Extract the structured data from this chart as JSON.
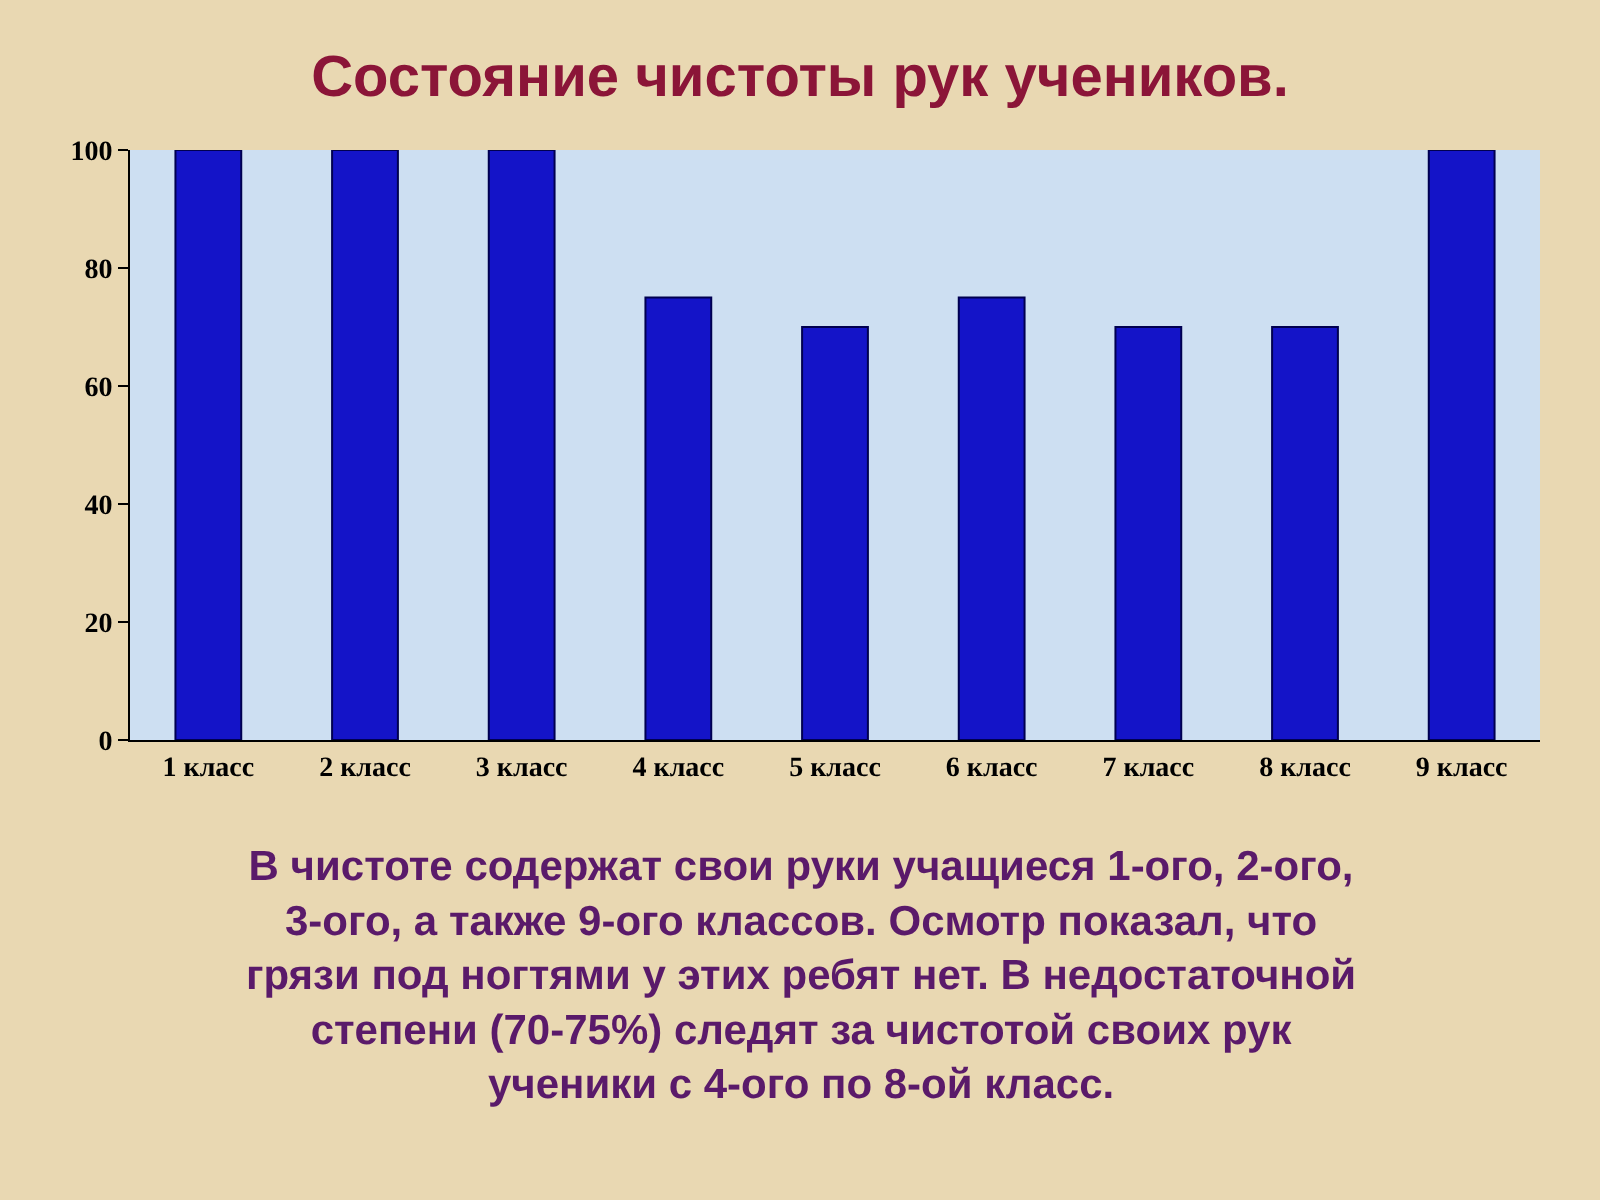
{
  "chart_data": {
    "type": "bar",
    "title": "Состояние чистоты рук учеников.",
    "categories": [
      "1 класс",
      "2 класс",
      "3 класс",
      "4 класс",
      "5 класс",
      "6 класс",
      "7 класс",
      "8 класс",
      "9 класс"
    ],
    "values": [
      100,
      100,
      100,
      75,
      70,
      75,
      70,
      70,
      100
    ],
    "color": "#1414c8",
    "ylim": [
      0,
      100
    ],
    "yticks": [
      0,
      20,
      40,
      60,
      80,
      100
    ],
    "annotations": [
      "В чистоте содержат свои руки учащиеся 1-ого, 2-ого, 3-ого, а также 9-ого классов. Осмотр показал, что грязи под ногтями у этих ребят нет. В недостаточной степени (70-75%) следят за чистотой своих рук ученики с 4-ого по 8-ой класс."
    ]
  }
}
